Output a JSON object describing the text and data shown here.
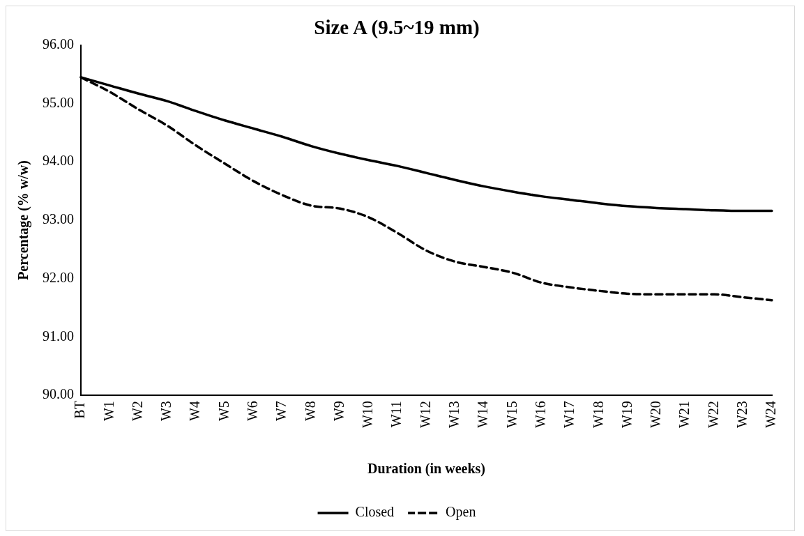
{
  "chart_data": {
    "type": "line",
    "title": "Size A (9.5~19 mm)",
    "xlabel": "Duration (in weeks)",
    "ylabel": "Percentage (% w/w)",
    "categories": [
      "BT",
      "W1",
      "W2",
      "W3",
      "W4",
      "W5",
      "W6",
      "W7",
      "W8",
      "W9",
      "W10",
      "W11",
      "W12",
      "W13",
      "W14",
      "W15",
      "W16",
      "W17",
      "W18",
      "W19",
      "W20",
      "W21",
      "W22",
      "W23",
      "W24"
    ],
    "series": [
      {
        "name": "Closed",
        "color": "#000000",
        "line_style": "solid",
        "values": [
          95.45,
          95.31,
          95.17,
          95.04,
          94.87,
          94.71,
          94.57,
          94.43,
          94.27,
          94.14,
          94.03,
          93.93,
          93.81,
          93.69,
          93.58,
          93.49,
          93.41,
          93.35,
          93.29,
          93.24,
          93.21,
          93.19,
          93.17,
          93.16,
          93.16
        ]
      },
      {
        "name": "Open",
        "color": "#000000",
        "line_style": "dashed",
        "values": [
          95.45,
          95.2,
          94.9,
          94.62,
          94.28,
          93.97,
          93.67,
          93.43,
          93.25,
          93.2,
          93.05,
          92.78,
          92.48,
          92.29,
          92.2,
          92.1,
          91.93,
          91.85,
          91.79,
          91.74,
          91.73,
          91.73,
          91.73,
          91.68,
          91.63
        ]
      }
    ],
    "ylim": [
      90,
      96
    ],
    "yticks": [
      {
        "value": 90,
        "label": "90.00"
      },
      {
        "value": 91,
        "label": "91.00"
      },
      {
        "value": 92,
        "label": "92.00"
      },
      {
        "value": 93,
        "label": "93.00"
      },
      {
        "value": 94,
        "label": "94.00"
      },
      {
        "value": 95,
        "label": "95.00"
      },
      {
        "value": 96,
        "label": "96.00"
      }
    ],
    "grid": false,
    "legend": "bottom",
    "marker": "none"
  }
}
